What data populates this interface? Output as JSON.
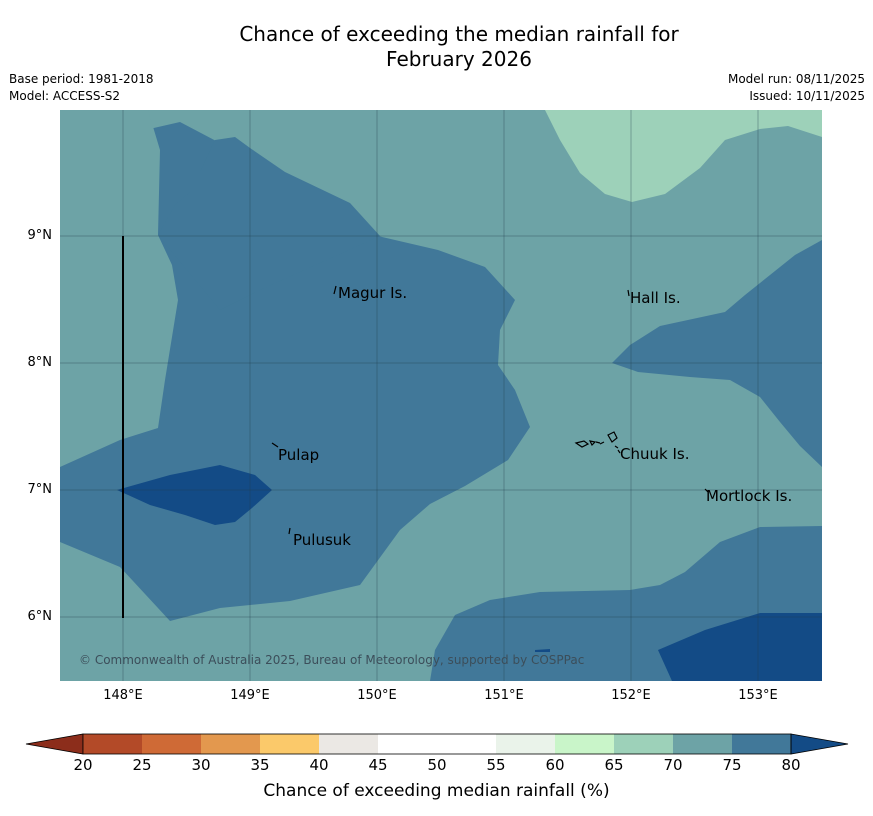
{
  "title": {
    "line1": "Chance of exceeding the median rainfall for",
    "line2": "February 2026"
  },
  "meta": {
    "base_period": "Base period: 1981-2018",
    "model": "Model: ACCESS-S2",
    "model_run": "Model run: 08/11/2025",
    "issued": "Issued: 10/11/2025"
  },
  "axes": {
    "lat_ticks": [
      "9°N",
      "8°N",
      "7°N",
      "6°N"
    ],
    "lon_ticks": [
      "148°E",
      "149°E",
      "150°E",
      "151°E",
      "152°E",
      "153°E"
    ]
  },
  "places": {
    "magur": "Magur Is.",
    "hall": "Hall Is.",
    "pulap": "Pulap",
    "chuuk": "Chuuk Is.",
    "mortlock": "Mortlock Is.",
    "pulusuk": "Pulusuk"
  },
  "copyright": "© Commonwealth of Australia 2025, Bureau of Meteorology, supported by COSPPac",
  "legend": {
    "label": "Chance of exceeding median rainfall (%)",
    "ticks": [
      "20",
      "25",
      "30",
      "35",
      "40",
      "45",
      "50",
      "55",
      "60",
      "65",
      "70",
      "75",
      "80"
    ],
    "colors": {
      "under": "#8c2d1b",
      "c20_25": "#b34a28",
      "c25_30": "#cf6a36",
      "c30_35": "#e3984e",
      "c35_40": "#fbc96a",
      "c40_45": "#ebe8e4",
      "c45_50": "#ffffff",
      "c50_55": "#ffffff",
      "c55_60": "#eaf3ea",
      "c60_65": "#c9f5c9",
      "c65_70": "#9dd1b9",
      "c70_75": "#6da3a6",
      "c75_80": "#417899",
      "over": "#134b86"
    }
  }
}
